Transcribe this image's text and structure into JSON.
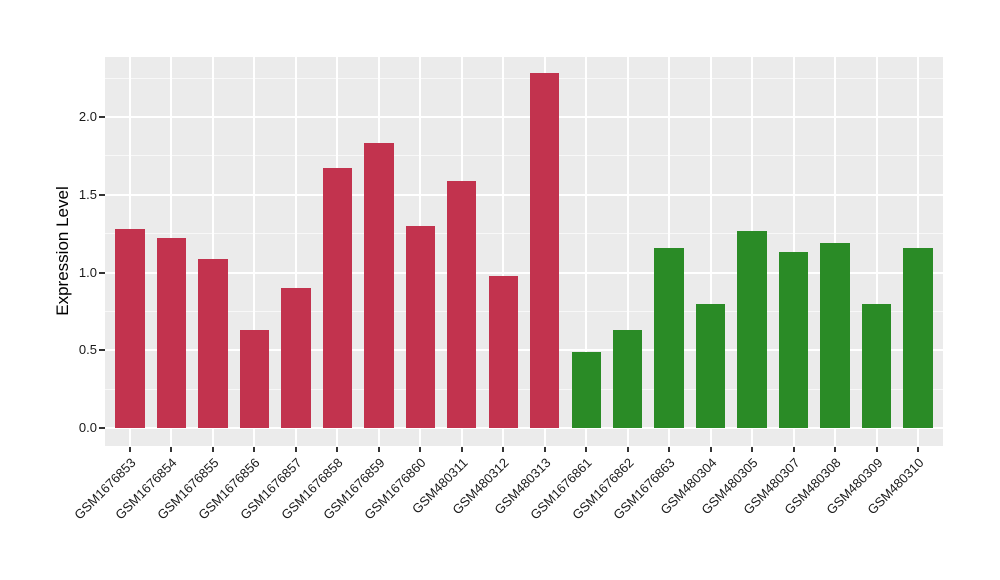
{
  "chart_data": {
    "type": "bar",
    "title": "",
    "xlabel": "",
    "ylabel": "Expression Level",
    "categories": [
      "GSM1676853",
      "GSM1676854",
      "GSM1676855",
      "GSM1676856",
      "GSM1676857",
      "GSM1676858",
      "GSM1676859",
      "GSM1676860",
      "GSM480311",
      "GSM480312",
      "GSM480313",
      "GSM1676861",
      "GSM1676862",
      "GSM1676863",
      "GSM480304",
      "GSM480305",
      "GSM480307",
      "GSM480308",
      "GSM480309",
      "GSM480310"
    ],
    "values": [
      1.28,
      1.22,
      1.09,
      0.63,
      0.9,
      1.67,
      1.83,
      1.3,
      1.59,
      0.98,
      2.28,
      0.49,
      0.63,
      1.16,
      0.8,
      1.27,
      1.13,
      1.19,
      0.8,
      1.16
    ],
    "bar_group": [
      "red",
      "red",
      "red",
      "red",
      "red",
      "red",
      "red",
      "red",
      "red",
      "red",
      "red",
      "green",
      "green",
      "green",
      "green",
      "green",
      "green",
      "green",
      "green",
      "green"
    ],
    "group_colors": {
      "red": "#C2334E",
      "green": "#2A8B26"
    },
    "yticks": {
      "values": [
        0,
        0.5,
        1.0,
        1.5,
        2.0
      ],
      "labels": [
        "0.0",
        "0.5",
        "1.0",
        "1.5",
        "2.0"
      ]
    },
    "yticks_minor": [
      0.25,
      0.75,
      1.25,
      1.75,
      2.25
    ],
    "ylim": [
      -0.11,
      2.39
    ],
    "grid": true,
    "legend": "none",
    "panel_background": "#EBEBEB",
    "grid_color": "#FFFFFF",
    "tick_color": "#333333",
    "text_color": "#1A1A1A",
    "figure_background": "#FFFFFF"
  }
}
